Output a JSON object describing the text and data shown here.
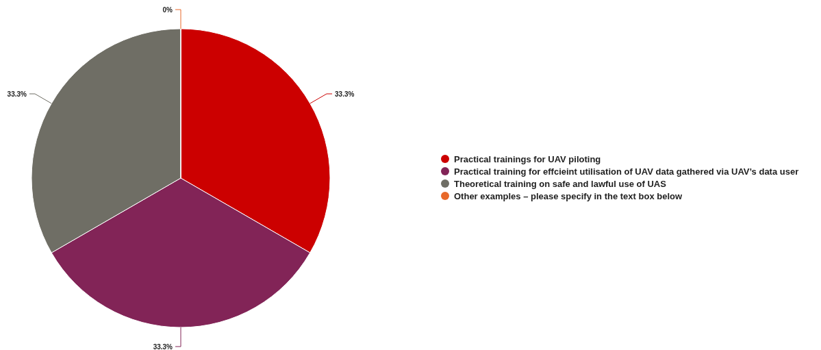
{
  "chart_data": {
    "type": "pie",
    "categories": [
      "Practical trainings for UAV piloting",
      "Practical training for effcieint utilisation of UAV data gathered via UAV’s data user",
      "Theoretical training on safe and lawful use of UAS",
      "Other examples – please specify in the text box below"
    ],
    "values": [
      33.3,
      33.3,
      33.3,
      0
    ],
    "colors": [
      "#cc0000",
      "#822457",
      "#6f6e65",
      "#e8692a"
    ],
    "value_labels": [
      "33.3%",
      "33.3%",
      "33.3%",
      "0%"
    ],
    "legend": "right"
  }
}
